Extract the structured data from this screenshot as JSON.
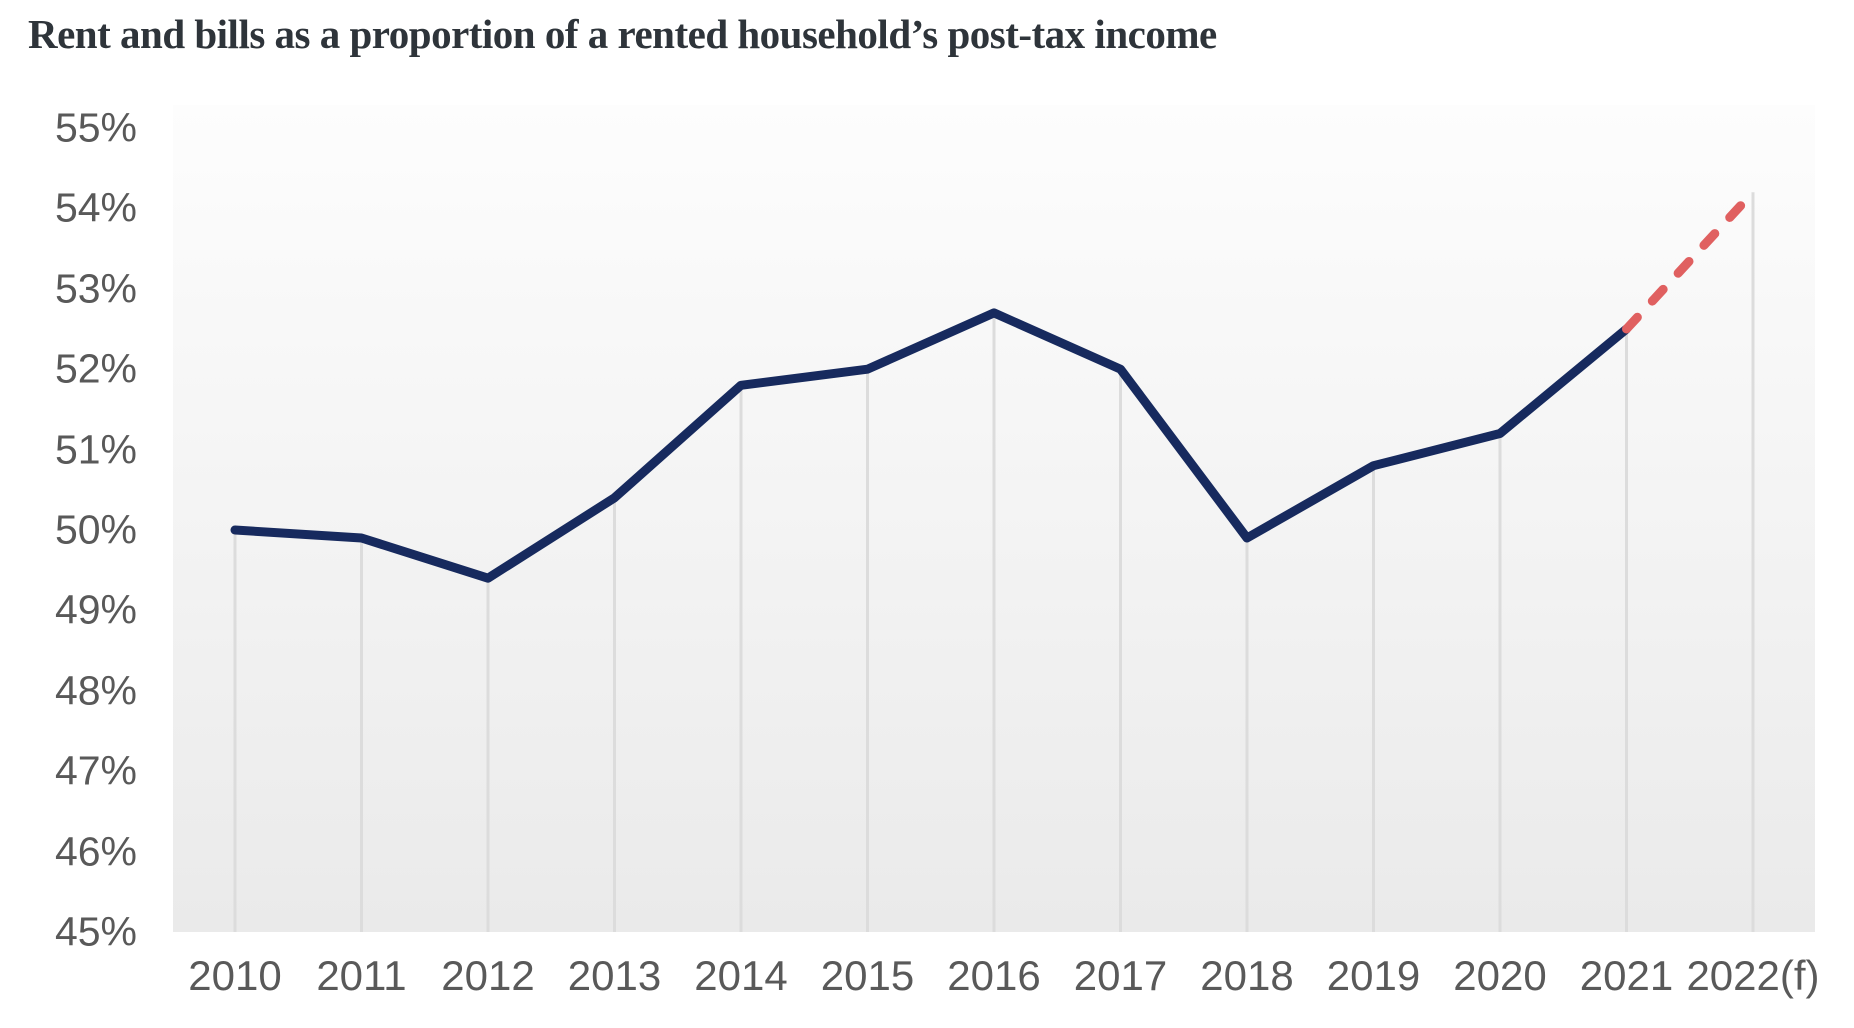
{
  "chart_data": {
    "type": "line",
    "title": "Rent and bills as a proportion of a rented household’s post-tax income",
    "categories": [
      "2010",
      "2011",
      "2012",
      "2013",
      "2014",
      "2015",
      "2016",
      "2017",
      "2018",
      "2019",
      "2020",
      "2021",
      "2022(f)"
    ],
    "series": [
      {
        "values": [
          50.0,
          49.9,
          49.4,
          50.4,
          51.8,
          52.0,
          52.7,
          52.0,
          49.9,
          50.8,
          51.2,
          52.5,
          54.2
        ],
        "style": "solid-then-dashed-forecast"
      }
    ],
    "forecast_from_index": 11,
    "forecast_segment": {
      "start_category": "2021",
      "start_value": 52.5,
      "end_category": "2022(f)",
      "end_value": 54.2,
      "style": "dashed"
    },
    "xlabel": "",
    "ylabel": "",
    "ylim": [
      45,
      55
    ],
    "ytick_labels": [
      "55%",
      "54%",
      "53%",
      "52%",
      "51%",
      "50%",
      "49%",
      "48%",
      "47%",
      "46%",
      "45%"
    ],
    "ytick_values": [
      55,
      54,
      53,
      52,
      51,
      50,
      49,
      48,
      47,
      46,
      45
    ],
    "grid": "vertical drop lines from each data point to baseline",
    "legend_position": "none"
  },
  "colors": {
    "line": "#172a5e",
    "forecast_line": "#e06060",
    "drop_line": "#dcdcdc",
    "axis_text": "#595959",
    "title_text": "#2e343a",
    "plot_bg_top": "#fdfdfd",
    "plot_bg_bottom": "#eaeaea",
    "page_bg": "#ffffff"
  }
}
